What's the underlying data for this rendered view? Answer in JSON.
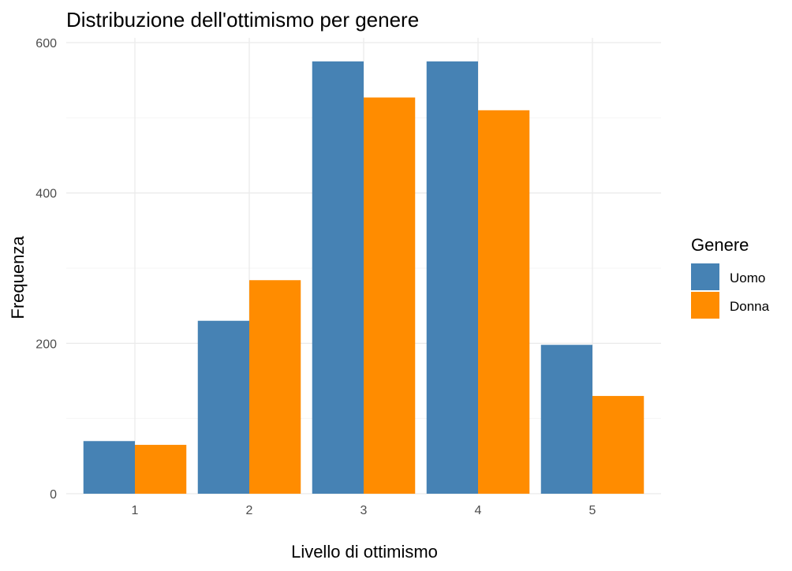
{
  "chart_data": {
    "type": "bar",
    "title": "Distribuzione dell'ottimismo per genere",
    "xlabel": "Livello di ottimismo",
    "ylabel": "Frequenza",
    "categories": [
      "1",
      "2",
      "3",
      "4",
      "5"
    ],
    "series": [
      {
        "name": "Uomo",
        "color": "#4682B4",
        "values": [
          70,
          230,
          575,
          575,
          198
        ]
      },
      {
        "name": "Donna",
        "color": "#FF8C00",
        "values": [
          65,
          284,
          527,
          510,
          130
        ]
      }
    ],
    "ylim": [
      0,
      600
    ],
    "yticks": [
      "0",
      "200",
      "400",
      "600"
    ],
    "grid": true,
    "legend": {
      "title": "Genere",
      "position": "right"
    }
  }
}
